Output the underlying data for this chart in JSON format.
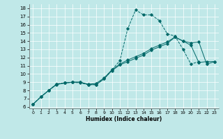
{
  "xlabel": "Humidex (Indice chaleur)",
  "bg_color": "#c0e8e8",
  "line_color": "#006868",
  "xlim": [
    -0.5,
    23.5
  ],
  "ylim": [
    5.8,
    18.5
  ],
  "xticks": [
    0,
    1,
    2,
    3,
    4,
    5,
    6,
    7,
    8,
    9,
    10,
    11,
    12,
    13,
    14,
    15,
    16,
    17,
    18,
    19,
    20,
    21,
    22,
    23
  ],
  "yticks": [
    6,
    7,
    8,
    9,
    10,
    11,
    12,
    13,
    14,
    15,
    16,
    17,
    18
  ],
  "s1_x": [
    0,
    1,
    2,
    3,
    4,
    5,
    6,
    7,
    8,
    9,
    10,
    11,
    12,
    13,
    14,
    15,
    16,
    17,
    18,
    19,
    20,
    21
  ],
  "s1_y": [
    6.3,
    7.2,
    8.0,
    8.8,
    8.9,
    9.0,
    8.9,
    8.7,
    8.7,
    9.4,
    10.5,
    11.6,
    15.5,
    17.8,
    17.2,
    17.2,
    16.5,
    14.9,
    14.6,
    13.0,
    11.2,
    11.5
  ],
  "s2_x": [
    0,
    1,
    2,
    3,
    4,
    5,
    6,
    7,
    8,
    9,
    10,
    11,
    12,
    13,
    14,
    15,
    16,
    17,
    18,
    19,
    20,
    21,
    22,
    23
  ],
  "s2_y": [
    6.3,
    7.2,
    8.0,
    8.7,
    8.9,
    9.0,
    9.0,
    8.7,
    8.7,
    9.4,
    10.4,
    11.1,
    11.5,
    11.9,
    12.3,
    12.9,
    13.3,
    13.7,
    14.5,
    14.0,
    13.8,
    13.9,
    11.2,
    11.5
  ],
  "s3_x": [
    0,
    1,
    2,
    3,
    4,
    5,
    6,
    7,
    8,
    9,
    10,
    11,
    12,
    13,
    14,
    15,
    16,
    17,
    18,
    19,
    20,
    21,
    22,
    23
  ],
  "s3_y": [
    6.3,
    7.2,
    8.0,
    8.75,
    8.9,
    9.0,
    9.0,
    8.75,
    8.85,
    9.5,
    10.5,
    11.2,
    11.7,
    12.1,
    12.5,
    13.1,
    13.5,
    13.9,
    14.5,
    14.0,
    13.5,
    11.4,
    11.5,
    11.5
  ]
}
